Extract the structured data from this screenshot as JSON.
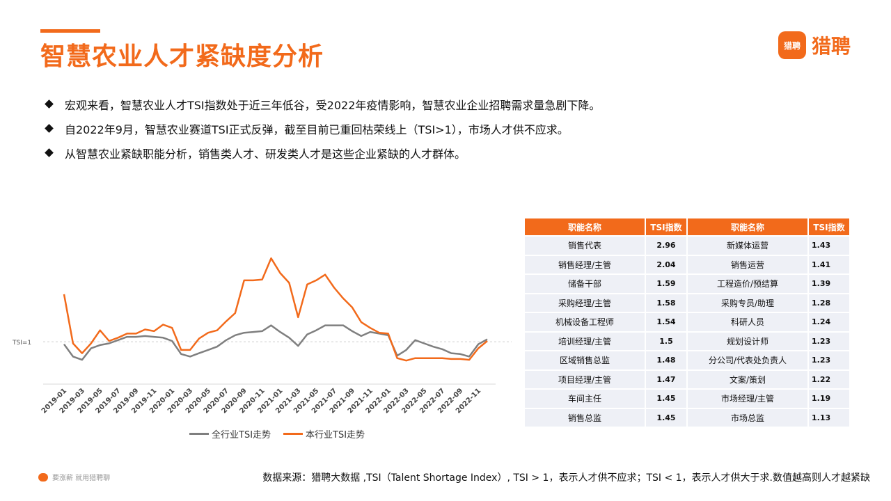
{
  "header": {
    "title": "智慧农业人才紧缺度分析",
    "logo_badge": "猎聘",
    "logo_text": "猎聘"
  },
  "bullets": [
    "宏观来看，智慧农业人才TSI指数处于近三年低谷，受2022年疫情影响，智慧农业企业招聘需求量急剧下降。",
    "自2022年9月，智慧农业赛道TSI正式反弹，截至目前已重回枯荣线上（TSI>1），市场人才供不应求。",
    "从智慧农业紧缺职能分析，销售类人才、研发类人才是这些企业紧缺的人才群体。"
  ],
  "chart_data": {
    "type": "line",
    "reference_label": "TSI=1",
    "x": [
      "2019-01",
      "2019-02",
      "2019-03",
      "2019-04",
      "2019-05",
      "2019-06",
      "2019-07",
      "2019-08",
      "2019-09",
      "2019-10",
      "2019-11",
      "2019-12",
      "2020-01",
      "2020-02",
      "2020-03",
      "2020-04",
      "2020-05",
      "2020-06",
      "2020-07",
      "2020-08",
      "2020-09",
      "2020-10",
      "2020-11",
      "2020-12",
      "2021-01",
      "2021-02",
      "2021-03",
      "2021-04",
      "2021-05",
      "2021-06",
      "2021-07",
      "2021-08",
      "2021-09",
      "2021-10",
      "2021-11",
      "2021-12",
      "2022-01",
      "2022-02",
      "2022-03",
      "2022-04",
      "2022-05",
      "2022-06",
      "2022-07",
      "2022-08",
      "2022-09",
      "2022-10",
      "2022-11",
      "2022-12"
    ],
    "tick_labels": [
      "2019-01",
      "2019-03",
      "2019-05",
      "2019-07",
      "2019-09",
      "2019-11",
      "2020-01",
      "2020-03",
      "2020-05",
      "2020-07",
      "2020-09",
      "2020-11",
      "2021-01",
      "2021-03",
      "2021-05",
      "2021-07",
      "2021-09",
      "2021-11",
      "2022-01",
      "2022-03",
      "2022-05",
      "2022-07",
      "2022-09",
      "2022-11"
    ],
    "series": [
      {
        "name": "全行业TSI走势",
        "color": "#7f7f7f",
        "values": [
          0.97,
          0.82,
          0.78,
          0.92,
          0.96,
          0.98,
          1.02,
          1.06,
          1.06,
          1.07,
          1.06,
          1.05,
          1.01,
          0.85,
          0.82,
          0.86,
          0.9,
          0.94,
          1.02,
          1.08,
          1.11,
          1.12,
          1.13,
          1.2,
          1.12,
          1.05,
          0.95,
          1.09,
          1.14,
          1.2,
          1.2,
          1.2,
          1.13,
          1.07,
          1.12,
          1.1,
          1.08,
          0.83,
          0.9,
          1.02,
          0.98,
          0.94,
          0.91,
          0.86,
          0.85,
          0.82,
          0.97,
          1.03
        ]
      },
      {
        "name": "本行业TSI走势",
        "color": "#f26a1b",
        "values": [
          1.58,
          0.98,
          0.86,
          0.98,
          1.14,
          1.01,
          1.05,
          1.1,
          1.1,
          1.15,
          1.13,
          1.21,
          1.17,
          0.9,
          0.9,
          1.04,
          1.11,
          1.14,
          1.25,
          1.35,
          1.75,
          1.75,
          1.76,
          2.02,
          1.84,
          1.72,
          1.3,
          1.7,
          1.75,
          1.82,
          1.66,
          1.53,
          1.42,
          1.24,
          1.17,
          1.11,
          1.1,
          0.8,
          0.77,
          0.8,
          0.8,
          0.8,
          0.8,
          0.79,
          0.79,
          0.78,
          0.92,
          1.01
        ]
      }
    ],
    "ylim": [
      0.5,
      2.2
    ]
  },
  "table": {
    "headers": [
      "职能名称",
      "TSI指数",
      "职能名称",
      "TSI指数"
    ],
    "rows": [
      [
        "销售代表",
        "2.96",
        "新媒体运营",
        "1.43"
      ],
      [
        "销售经理/主管",
        "2.04",
        "销售运营",
        "1.41"
      ],
      [
        "储备干部",
        "1.59",
        "工程造价/预结算",
        "1.39"
      ],
      [
        "采购经理/主管",
        "1.58",
        "采购专员/助理",
        "1.28"
      ],
      [
        "机械设备工程师",
        "1.54",
        "科研人员",
        "1.24"
      ],
      [
        "培训经理/主管",
        "1.5",
        "规划设计师",
        "1.23"
      ],
      [
        "区域销售总监",
        "1.48",
        "分公司/代表处负责人",
        "1.23"
      ],
      [
        "项目经理/主管",
        "1.47",
        "文案/策划",
        "1.22"
      ],
      [
        "车间主任",
        "1.45",
        "市场经理/主管",
        "1.19"
      ],
      [
        "销售总监",
        "1.45",
        "市场总监",
        "1.13"
      ]
    ]
  },
  "footer": {
    "slogan": "要涨薪 就用猎聘聊",
    "source": "数据来源：猎聘大数据 ,TSI（Talent Shortage Index）, TSI > 1，表示人才供不应求；TSI < 1，表示人才供大于求.数值越高则人才越紧缺"
  }
}
